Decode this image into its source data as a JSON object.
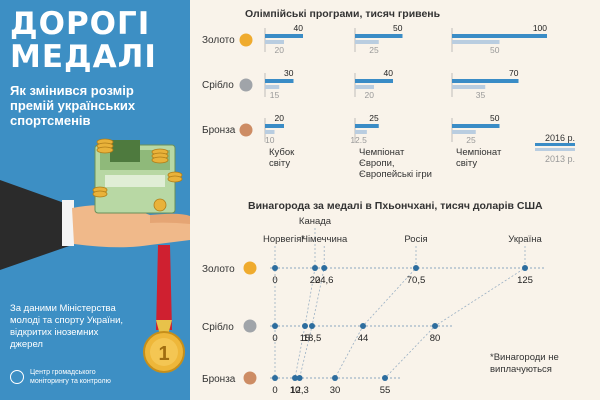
{
  "header": {
    "title_line1": "ДОРОГІ",
    "title_line2": "МЕДАЛІ",
    "subtitle": "Як змінився розмір премій українських спортсменів"
  },
  "source_text": "За даними Міністерства молоді та спорту України, відкритих іноземних джерел",
  "org_text": "Центр громадського моніторингу та контролю",
  "medal_labels": {
    "gold": "Золото",
    "silver": "Срібло",
    "bronze": "Бронза"
  },
  "colors": {
    "panel": "#3d8fc4",
    "bar2016": "#3a8cc6",
    "bar2013": "#b9cde0",
    "gold": "#efab2e",
    "silver": "#a0a4a9",
    "bronze": "#cd8c64",
    "dots": "#2d6d9e"
  },
  "chart_data": [
    {
      "type": "bar",
      "title": "Олімпійські програми, тисяч гривень",
      "categories": [
        "Кубок світу",
        "Чемпіонат Європи, Європейські ігри",
        "Чемпіонат світу"
      ],
      "medals": [
        "Золото",
        "Срібло",
        "Бронза"
      ],
      "series": [
        {
          "name": "2016 р.",
          "values": {
            "Кубок світу": [
              40,
              30,
              20
            ],
            "Чемпіонат Європи, Європейські ігри": [
              50,
              40,
              25
            ],
            "Чемпіонат світу": [
              100,
              70,
              50
            ]
          }
        },
        {
          "name": "2013 р.",
          "values": {
            "Кубок світу": [
              20,
              15,
              10
            ],
            "Чемпіонат Європи, Європейські ігри": [
              25,
              20,
              12.5
            ],
            "Чемпіонат світу": [
              50,
              35,
              25
            ]
          }
        }
      ],
      "display_labels": {
        "2016 р.": [
          [
            "40",
            "30",
            "20"
          ],
          [
            "50",
            "40",
            "25"
          ],
          [
            "100",
            "70",
            "50"
          ]
        ],
        "2013 р.": [
          [
            "20",
            "15",
            "10"
          ],
          [
            "25",
            "20",
            "12.5"
          ],
          [
            "50",
            "35",
            "25"
          ]
        ]
      },
      "xlim": [
        0,
        100
      ],
      "legend_position": "bottom-right",
      "legend": [
        "2016 р.",
        "2013 р."
      ]
    },
    {
      "type": "scatter",
      "title": "Винагорода за медалі в Пхьончхані, тисяч доларів США",
      "countries": [
        "Норвегія*",
        "Канада",
        "Німеччина",
        "Росія",
        "Україна"
      ],
      "medals": [
        "Золото",
        "Срібло",
        "Бронза"
      ],
      "values": {
        "Норвегія*": [
          0,
          0,
          0
        ],
        "Канада": [
          20,
          15,
          10
        ],
        "Німеччина": [
          24.6,
          18.5,
          12.3
        ],
        "Росія": [
          70.5,
          44,
          30
        ],
        "Україна": [
          125,
          80,
          55
        ]
      },
      "display_labels": {
        "Норвегія*": [
          "0",
          "0",
          "0"
        ],
        "Канада": [
          "20",
          "15",
          "10"
        ],
        "Німеччина": [
          "24,6",
          "18,5",
          "12,3"
        ],
        "Росія": [
          "70,5",
          "44",
          "30"
        ],
        "Україна": [
          "125",
          "80",
          "55"
        ]
      },
      "xlim": [
        0,
        140
      ],
      "note": "*Винагороди не виплачуються"
    }
  ]
}
